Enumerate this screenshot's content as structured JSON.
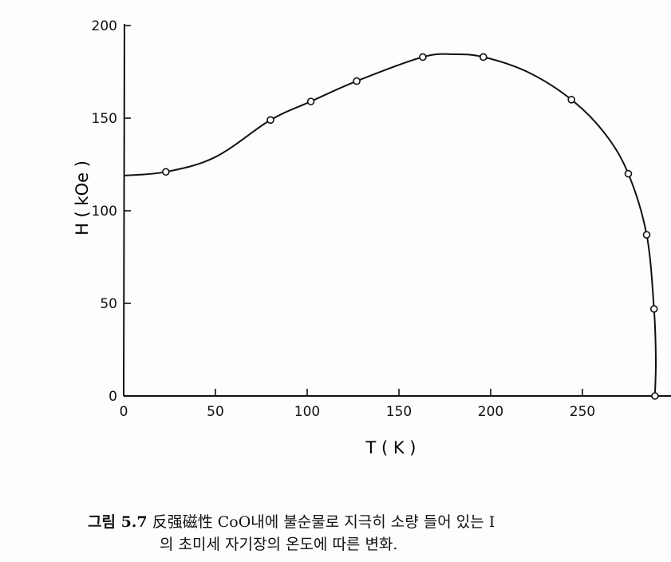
{
  "chart_data": {
    "type": "scatter",
    "xlabel": "T ( K )",
    "ylabel": "H ( kOe )",
    "xlim": [
      0,
      290
    ],
    "ylim": [
      0,
      200
    ],
    "xticks": [
      0,
      50,
      100,
      150,
      200,
      250
    ],
    "yticks": [
      0,
      50,
      100,
      150,
      200
    ],
    "grid": false,
    "points": [
      {
        "x": 23,
        "y": 121
      },
      {
        "x": 80,
        "y": 149
      },
      {
        "x": 102,
        "y": 159
      },
      {
        "x": 127,
        "y": 170
      },
      {
        "x": 163,
        "y": 183
      },
      {
        "x": 196,
        "y": 183
      },
      {
        "x": 244,
        "y": 160
      },
      {
        "x": 275,
        "y": 120
      },
      {
        "x": 285,
        "y": 87
      },
      {
        "x": 289,
        "y": 47
      },
      {
        "x": 289.5,
        "y": 0
      }
    ],
    "curve": [
      {
        "x": 0,
        "y": 119
      },
      {
        "x": 23,
        "y": 121
      },
      {
        "x": 50,
        "y": 129
      },
      {
        "x": 80,
        "y": 149
      },
      {
        "x": 102,
        "y": 159
      },
      {
        "x": 127,
        "y": 170
      },
      {
        "x": 163,
        "y": 183
      },
      {
        "x": 180,
        "y": 184.5
      },
      {
        "x": 196,
        "y": 183
      },
      {
        "x": 220,
        "y": 175
      },
      {
        "x": 244,
        "y": 160
      },
      {
        "x": 262,
        "y": 142
      },
      {
        "x": 275,
        "y": 120
      },
      {
        "x": 285,
        "y": 87
      },
      {
        "x": 289,
        "y": 47
      },
      {
        "x": 290,
        "y": 20
      },
      {
        "x": 289.5,
        "y": 0
      }
    ]
  },
  "caption": {
    "label": "그림 5.7",
    "text_line1": "反强磁性 CoO내에 불순물로 지극히 소량 들어 있는 I",
    "text_line2": "의 초미세 자기장의 온도에 따른 변화."
  }
}
